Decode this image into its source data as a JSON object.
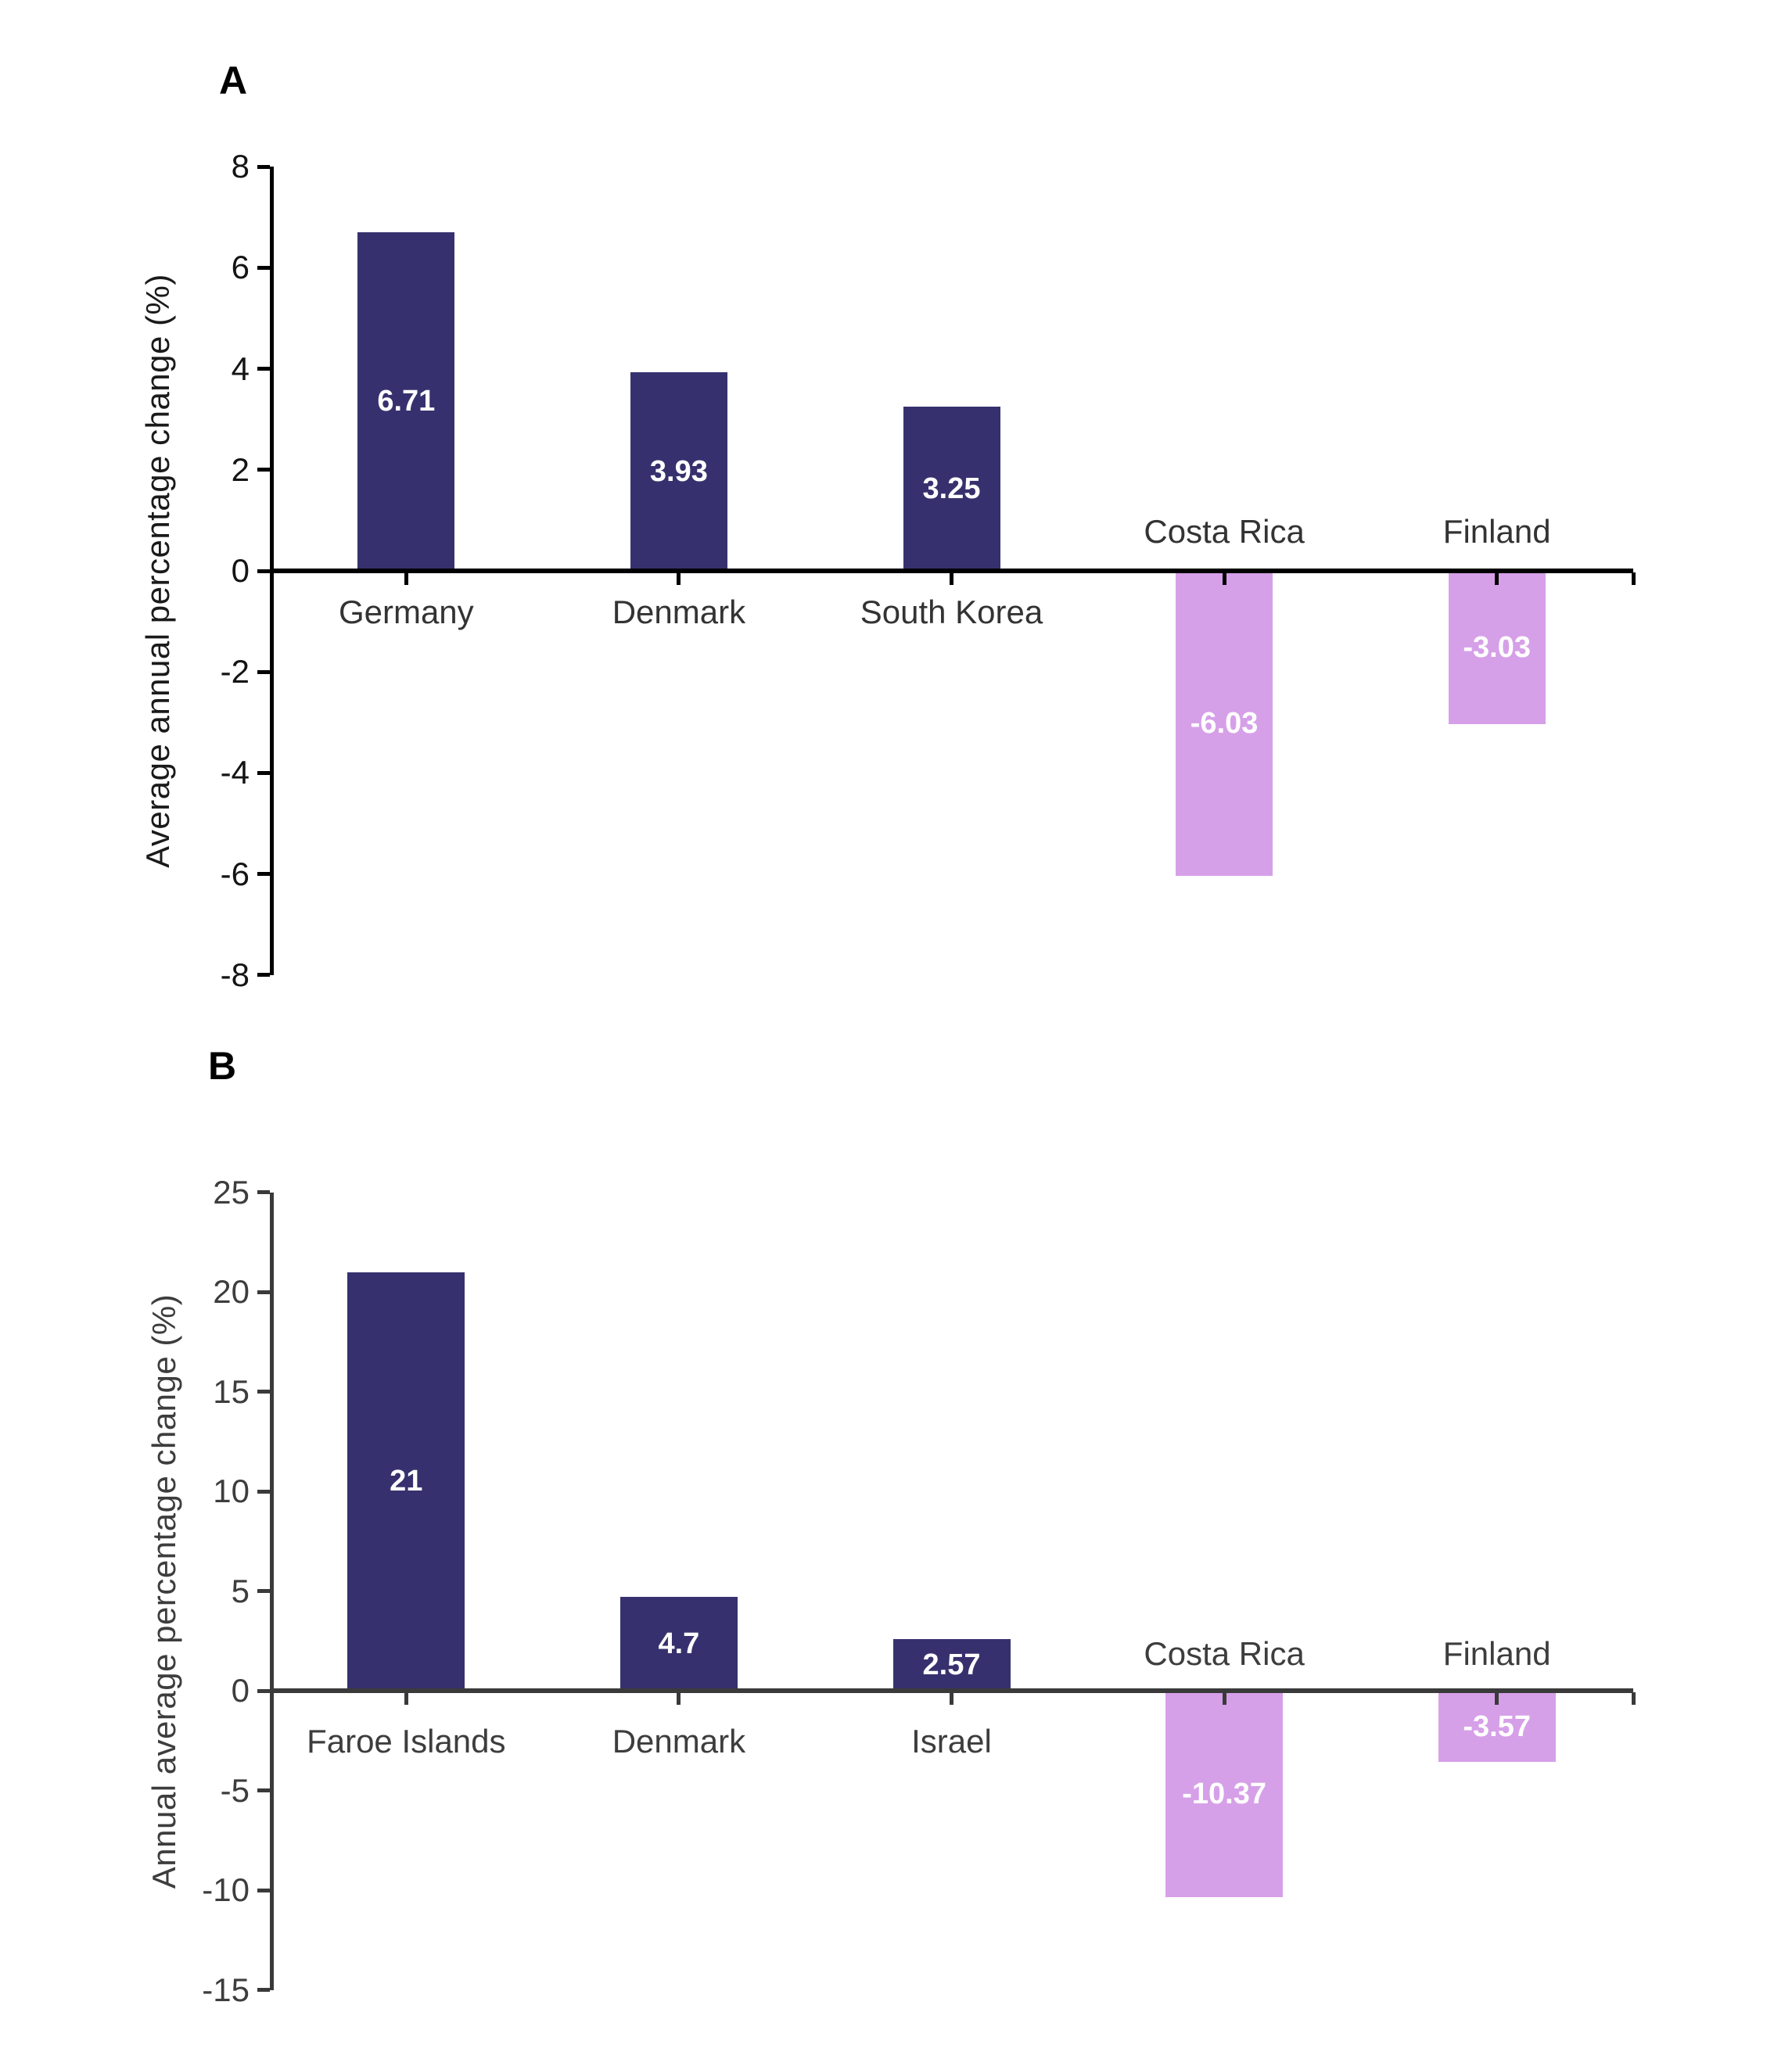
{
  "figure": {
    "background_color": "#ffffff",
    "panels": [
      "A",
      "B"
    ]
  },
  "chart_data": [
    {
      "type": "bar",
      "panel_label": "A",
      "title": "",
      "xlabel": "",
      "ylabel": "Average annual percentage change (%)",
      "categories": [
        "Germany",
        "Denmark",
        "South Korea",
        "Costa Rica",
        "Finland"
      ],
      "values": [
        6.71,
        3.93,
        3.25,
        -6.03,
        -3.03
      ],
      "value_labels": [
        "6.71",
        "3.93",
        "3.25",
        "-6.03",
        "-3.03"
      ],
      "ylim": [
        -8,
        8
      ],
      "yticks": [
        8,
        6,
        4,
        2,
        0,
        -2,
        -4,
        -6,
        -8
      ],
      "grid": false,
      "legend": false,
      "value_label_position": "center-of-bar",
      "value_label_color": "#ffffff",
      "category_label_position": "axis-opposite-side-of-bar",
      "bar_color_positive": "#36316e",
      "bar_color_negative": "#d6a0e8",
      "axis_color": "#000000",
      "tick_text_color": "#141414",
      "text_color": "#333333"
    },
    {
      "type": "bar",
      "panel_label": "B",
      "title": "",
      "xlabel": "",
      "ylabel": "Annual average percentage change (%)",
      "categories": [
        "Faroe Islands",
        "Denmark",
        "Israel",
        "Costa Rica",
        "Finland"
      ],
      "values": [
        21,
        4.7,
        2.57,
        -10.37,
        -3.57
      ],
      "value_labels": [
        "21",
        "4.7",
        "2.57",
        "-10.37",
        "-3.57"
      ],
      "ylim": [
        -15,
        25
      ],
      "yticks": [
        25,
        20,
        15,
        10,
        5,
        0,
        -5,
        -10,
        -15
      ],
      "grid": false,
      "legend": false,
      "value_label_position": "center-of-bar",
      "value_label_color": "#ffffff",
      "category_label_position": "axis-opposite-side-of-bar",
      "bar_color_positive": "#36316e",
      "bar_color_negative": "#d6a0e8",
      "axis_color": "#3a3a3a",
      "tick_text_color": "#3d3d3d",
      "text_color": "#3d3d3d"
    }
  ]
}
